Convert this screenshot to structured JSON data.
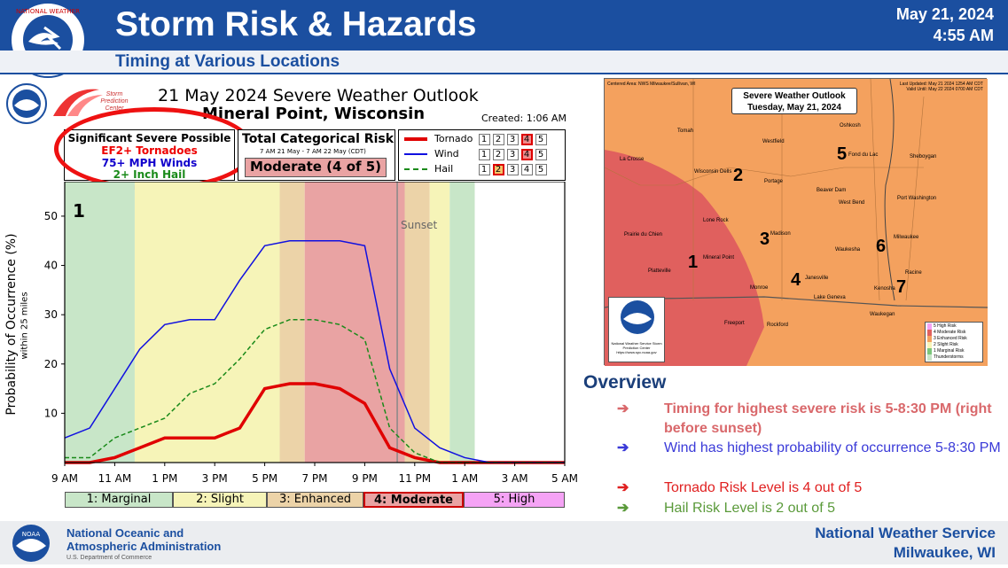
{
  "header": {
    "title": "Storm Risk & Hazards",
    "date": "May 21, 2024",
    "time": "4:55 AM",
    "subtitle": "Timing at Various Locations"
  },
  "chart_panel": {
    "title": "21 May 2024 Severe Weather Outlook",
    "location": "Mineral Point, Wisconsin",
    "created": "Created: 1:06 AM",
    "spc_label": "Storm Prediction Center",
    "sig_box": {
      "heading": "Significant Severe Possible",
      "line1": "EF2+ Tornadoes",
      "line2": "75+ MPH Winds",
      "line3": "2+ Inch Hail"
    },
    "cat_box": {
      "heading": "Total Categorical Risk",
      "period": "7 AM 21 May - 7 AM 22 May (CDT)",
      "value": "Moderate (4 of 5)"
    },
    "legend": [
      {
        "name": "Tornado",
        "color": "#e00000",
        "levels": [
          "1",
          "2",
          "3",
          "4",
          "5"
        ],
        "selected": 4
      },
      {
        "name": "Wind",
        "color": "#1010e0",
        "levels": [
          "1",
          "2",
          "3",
          "4",
          "5"
        ],
        "selected": 4
      },
      {
        "name": "Hail",
        "color": "#1a8a1a",
        "levels": [
          "1",
          "2",
          "3",
          "4",
          "5"
        ],
        "selected": 2
      }
    ],
    "category_bar": [
      "1: Marginal",
      "2: Slight",
      "3: Enhanced",
      "4: Moderate",
      "5: High"
    ],
    "sunset_label": "Sunset",
    "region_number": "1"
  },
  "chart_data": {
    "type": "line",
    "ylabel": "Probability of Occurrence (%)",
    "ylabel_sub": "within 25 miles",
    "x": [
      "9 AM",
      "10 AM",
      "11 AM",
      "12 PM",
      "1 PM",
      "2 PM",
      "3 PM",
      "4 PM",
      "5 PM",
      "6 PM",
      "7 PM",
      "8 PM",
      "9 PM",
      "10 PM",
      "11 PM",
      "12 AM",
      "1 AM",
      "2 AM",
      "3 AM",
      "4 AM",
      "5 AM"
    ],
    "xticks": [
      "9 AM",
      "11 AM",
      "1 PM",
      "3 PM",
      "5 PM",
      "7 PM",
      "9 PM",
      "11 PM",
      "1 AM",
      "3 AM",
      "5 AM"
    ],
    "ylim": [
      0,
      57
    ],
    "yticks": [
      10,
      20,
      30,
      40,
      50
    ],
    "series": [
      {
        "name": "Tornado",
        "color": "#e00000",
        "style": "solid",
        "values": [
          0,
          0,
          1,
          3,
          5,
          5,
          5,
          7,
          15,
          16,
          16,
          15,
          12,
          3,
          1,
          0,
          0,
          0,
          0,
          0,
          0
        ]
      },
      {
        "name": "Wind",
        "color": "#1010e0",
        "style": "solid",
        "values": [
          5,
          7,
          15,
          23,
          28,
          29,
          29,
          37,
          44,
          45,
          45,
          45,
          44,
          19,
          7,
          3,
          1,
          0,
          0,
          0,
          0
        ]
      },
      {
        "name": "Hail",
        "color": "#1a8a1a",
        "style": "dashed",
        "values": [
          1,
          1,
          5,
          7,
          9,
          14,
          16,
          21,
          27,
          29,
          29,
          28,
          25,
          7,
          2,
          0,
          0,
          0,
          0,
          0,
          0
        ]
      }
    ],
    "risk_bands": [
      {
        "from": 0,
        "to": 2.8,
        "level": 1
      },
      {
        "from": 2.8,
        "to": 8.6,
        "level": 2
      },
      {
        "from": 8.6,
        "to": 9.6,
        "level": 3
      },
      {
        "from": 9.6,
        "to": 13.6,
        "level": 4
      },
      {
        "from": 13.6,
        "to": 14.6,
        "level": 3
      },
      {
        "from": 14.6,
        "to": 15.4,
        "level": 2
      },
      {
        "from": 15.4,
        "to": 16.4,
        "level": 1
      }
    ],
    "sunset_at": 13.3
  },
  "map": {
    "header_left": "Centered Area: NWS Milwaukee/Sullivan, WI",
    "updated": "Last Updated: May 21 2024 1254 AM CDT",
    "valid": "Valid Until: May 22 2024 0700 AM CDT",
    "title_line1": "Severe Weather Outlook",
    "title_line2": "Tuesday, May 21, 2024",
    "nws_label": "National Weather Service Storm Prediction Center",
    "nws_url": "https://www.spc.noaa.gov",
    "cities": [
      {
        "name": "Tomah"
      },
      {
        "name": "Westfield"
      },
      {
        "name": "Oshkosh"
      },
      {
        "name": "La Crosse"
      },
      {
        "name": "Wisconsin Dells"
      },
      {
        "name": "Fond du Lac"
      },
      {
        "name": "Sheboygan"
      },
      {
        "name": "Portage"
      },
      {
        "name": "Beaver Dam"
      },
      {
        "name": "West Bend"
      },
      {
        "name": "Port Washington"
      },
      {
        "name": "Lone Rock"
      },
      {
        "name": "Madison"
      },
      {
        "name": "Prairie du Chien"
      },
      {
        "name": "Milwaukee"
      },
      {
        "name": "Waukesha"
      },
      {
        "name": "Mineral Point"
      },
      {
        "name": "Platteville"
      },
      {
        "name": "Janesville"
      },
      {
        "name": "Racine"
      },
      {
        "name": "Monroe"
      },
      {
        "name": "Kenosha"
      },
      {
        "name": "Lake Geneva"
      },
      {
        "name": "Waukegan"
      },
      {
        "name": "Freeport"
      },
      {
        "name": "Rockford"
      }
    ],
    "numbers": [
      "1",
      "2",
      "3",
      "4",
      "5",
      "6",
      "7"
    ],
    "legend": [
      "5 High Risk",
      "4 Moderate Risk",
      "3 Enhanced Risk",
      "2 Slight Risk",
      "1 Marginal Risk",
      "Thunderstorms"
    ]
  },
  "overview": {
    "title": "Overview",
    "items": [
      {
        "text": "Timing for highest severe risk is 5-8:30 PM (right before sunset)",
        "color": "#d9686b",
        "bold": true
      },
      {
        "text": "Wind has highest probability of occurrence 5-8:30 PM",
        "color": "#3a3ad8",
        "bold": false
      },
      {
        "text": "Tornado Risk Level is 4 out of 5",
        "color": "#e02020",
        "bold": false
      },
      {
        "text": "Hail Risk Level is 2 out of 5",
        "color": "#5a9a3a",
        "bold": false
      }
    ]
  },
  "footer": {
    "org_line1": "National Oceanic and",
    "org_line2": "Atmospheric Administration",
    "org_line3": "U.S. Department of Commerce",
    "nws_line1": "National Weather Service",
    "nws_line2": "Milwaukee, WI"
  },
  "colors": {
    "brand": "#1b4fa0",
    "marginal": "#c8e6c8",
    "slight": "#f6f4b8",
    "enhanced": "#ecd3a8",
    "moderate": "#e9a3a3",
    "high": "#f5a3f5"
  }
}
